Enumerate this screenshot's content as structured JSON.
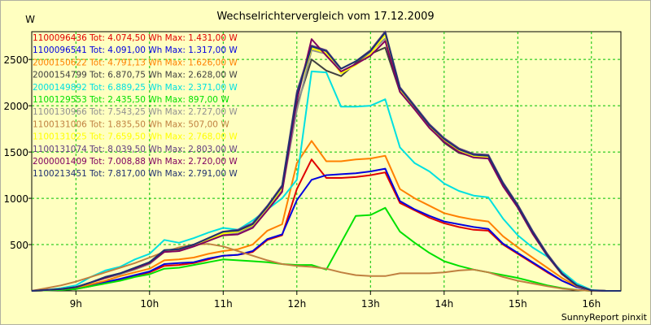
{
  "chart_data": {
    "type": "line",
    "title": "Wechselrichtervergleich vom 17.12.2009",
    "ylabel": "W",
    "xlabel": "",
    "credit": "SunnyReport pinxit",
    "grid": true,
    "legend_position": "top-left",
    "xlim": [
      8.4,
      16.4
    ],
    "ylim": [
      0,
      2800
    ],
    "x_ticks": [
      9,
      10,
      11,
      12,
      13,
      14,
      15,
      16
    ],
    "x_tick_labels": [
      "9h",
      "10h",
      "11h",
      "12h",
      "13h",
      "14h",
      "15h",
      "16h"
    ],
    "y_ticks": [
      500,
      1000,
      1500,
      2000,
      2500
    ],
    "y_tick_labels": [
      "500",
      "1000",
      "1500",
      "2000",
      "2500"
    ],
    "x": [
      8.4,
      8.6,
      8.8,
      9.0,
      9.2,
      9.4,
      9.6,
      9.8,
      10.0,
      10.2,
      10.4,
      10.6,
      10.8,
      11.0,
      11.2,
      11.4,
      11.6,
      11.8,
      12.0,
      12.2,
      12.4,
      12.6,
      12.8,
      13.0,
      13.2,
      13.4,
      13.6,
      13.8,
      14.0,
      14.2,
      14.4,
      14.6,
      14.8,
      15.0,
      15.2,
      15.4,
      15.6,
      15.8,
      16.0,
      16.2,
      16.4
    ],
    "series": [
      {
        "name": "1100096436",
        "label": "1100096436 Tot: 4.074,50 Wh Max: 1.431,00 W",
        "color": "#e00000",
        "values": [
          0,
          5,
          10,
          20,
          50,
          90,
          120,
          160,
          200,
          270,
          280,
          300,
          340,
          380,
          390,
          420,
          550,
          600,
          1100,
          1420,
          1220,
          1220,
          1230,
          1250,
          1280,
          950,
          870,
          790,
          730,
          690,
          660,
          650,
          500,
          400,
          300,
          200,
          110,
          40,
          5,
          0,
          0
        ]
      },
      {
        "name": "1100096541",
        "label": "1100096541 Tot: 4.091,00 Wh Max: 1.317,00 W",
        "color": "#0000e0",
        "values": [
          0,
          5,
          10,
          20,
          55,
          95,
          130,
          170,
          210,
          290,
          300,
          310,
          350,
          380,
          390,
          430,
          560,
          610,
          980,
          1200,
          1250,
          1260,
          1270,
          1290,
          1320,
          970,
          880,
          810,
          750,
          720,
          690,
          670,
          510,
          410,
          310,
          210,
          110,
          40,
          5,
          0,
          0
        ]
      },
      {
        "name": "2000150622",
        "label": "2000150622 Tot: 4.791,13 Wh Max: 1.626,00 W",
        "color": "#ff8000",
        "values": [
          0,
          5,
          15,
          30,
          70,
          110,
          160,
          200,
          240,
          330,
          340,
          360,
          400,
          430,
          450,
          500,
          650,
          720,
          1380,
          1620,
          1400,
          1400,
          1420,
          1430,
          1460,
          1100,
          1000,
          920,
          840,
          800,
          770,
          750,
          590,
          470,
          360,
          250,
          140,
          50,
          5,
          0,
          0
        ]
      },
      {
        "name": "2000154799",
        "label": "2000154799 Tot: 6.870,75 Wh Max: 2.628,00 W",
        "color": "#404040",
        "values": [
          0,
          10,
          20,
          40,
          90,
          140,
          180,
          240,
          300,
          430,
          440,
          500,
          560,
          620,
          640,
          700,
          900,
          1100,
          2000,
          2500,
          2380,
          2320,
          2460,
          2560,
          2628,
          2150,
          1970,
          1770,
          1600,
          1490,
          1450,
          1440,
          1150,
          900,
          620,
          380,
          180,
          60,
          5,
          0,
          0
        ]
      },
      {
        "name": "2000149892",
        "label": "2000149892 Tot: 6.889,25 Wh Max: 2.371,00 W",
        "color": "#00e0e0",
        "values": [
          0,
          10,
          30,
          60,
          150,
          220,
          260,
          340,
          400,
          550,
          520,
          570,
          630,
          680,
          660,
          760,
          880,
          1000,
          1200,
          2371,
          2360,
          1990,
          1990,
          2000,
          2070,
          1550,
          1380,
          1290,
          1160,
          1080,
          1030,
          1010,
          780,
          600,
          470,
          370,
          210,
          80,
          10,
          0,
          0
        ]
      },
      {
        "name": "1100129553",
        "label": "1100129553 Tot: 2.435,50 Wh Max: 897,00 W",
        "color": "#00e000",
        "values": [
          0,
          5,
          10,
          20,
          50,
          80,
          110,
          150,
          180,
          240,
          250,
          280,
          310,
          340,
          330,
          320,
          310,
          290,
          280,
          280,
          230,
          520,
          810,
          820,
          897,
          640,
          520,
          410,
          320,
          270,
          230,
          200,
          170,
          140,
          100,
          60,
          30,
          10,
          0,
          0,
          0
        ]
      },
      {
        "name": "1100130966",
        "label": "1100130966 Tot: 7.543,25 Wh Max: 2.727,00 W",
        "color": "#909090",
        "values": [
          0,
          10,
          20,
          40,
          90,
          140,
          180,
          230,
          290,
          420,
          430,
          480,
          540,
          610,
          620,
          690,
          880,
          1080,
          1950,
          2600,
          2560,
          2400,
          2480,
          2580,
          2727,
          2160,
          1970,
          1770,
          1620,
          1520,
          1470,
          1460,
          1160,
          920,
          640,
          400,
          190,
          60,
          5,
          0,
          0
        ]
      },
      {
        "name": "1100131006",
        "label": "1100131006 Tot: 1.835,50 Wh Max: 507,00 W",
        "color": "#c08040",
        "values": [
          0,
          30,
          60,
          100,
          150,
          200,
          250,
          300,
          360,
          420,
          470,
          500,
          507,
          480,
          430,
          380,
          330,
          290,
          270,
          260,
          240,
          200,
          170,
          160,
          160,
          190,
          190,
          190,
          200,
          220,
          230,
          200,
          150,
          110,
          80,
          50,
          25,
          10,
          0,
          0,
          0
        ]
      },
      {
        "name": "1100131025",
        "label": "1100131025 Tot: 7.659,50 Wh Max: 2.768,00 W",
        "color": "#ffff00",
        "values": [
          0,
          10,
          20,
          40,
          90,
          140,
          190,
          240,
          300,
          430,
          440,
          490,
          560,
          620,
          640,
          710,
          900,
          1110,
          2100,
          2620,
          2570,
          2350,
          2440,
          2560,
          2768,
          2160,
          1980,
          1770,
          1620,
          1510,
          1450,
          1440,
          1150,
          910,
          630,
          390,
          180,
          60,
          5,
          0,
          0
        ]
      },
      {
        "name": "1100131074",
        "label": "1100131074 Tot: 8.039,50 Wh Max: 2.803,00 W",
        "color": "#604080",
        "values": [
          0,
          10,
          20,
          40,
          90,
          150,
          190,
          250,
          310,
          440,
          450,
          500,
          570,
          640,
          660,
          730,
          920,
          1140,
          2150,
          2650,
          2600,
          2400,
          2480,
          2600,
          2803,
          2200,
          2000,
          1800,
          1650,
          1540,
          1480,
          1470,
          1170,
          930,
          650,
          400,
          190,
          60,
          5,
          0,
          0
        ]
      },
      {
        "name": "2000001409",
        "label": "2000001409 Tot: 7.008,88 Wh Max: 2.720,00 W",
        "color": "#800060",
        "values": [
          0,
          10,
          20,
          40,
          90,
          140,
          190,
          240,
          300,
          420,
          430,
          480,
          540,
          600,
          610,
          680,
          870,
          1070,
          2060,
          2720,
          2540,
          2370,
          2450,
          2540,
          2700,
          2150,
          1960,
          1760,
          1610,
          1500,
          1440,
          1430,
          1130,
          900,
          620,
          380,
          180,
          60,
          5,
          0,
          0
        ]
      },
      {
        "name": "1100213451",
        "label": "1100213451 Tot: 7.817,00 Wh Max: 2.791,00 W",
        "color": "#203070",
        "values": [
          0,
          10,
          20,
          40,
          90,
          150,
          190,
          250,
          310,
          440,
          450,
          500,
          570,
          640,
          650,
          720,
          910,
          1130,
          2120,
          2640,
          2590,
          2400,
          2480,
          2590,
          2791,
          2190,
          1990,
          1790,
          1640,
          1530,
          1470,
          1460,
          1160,
          920,
          640,
          390,
          185,
          60,
          5,
          0,
          0
        ]
      }
    ]
  }
}
